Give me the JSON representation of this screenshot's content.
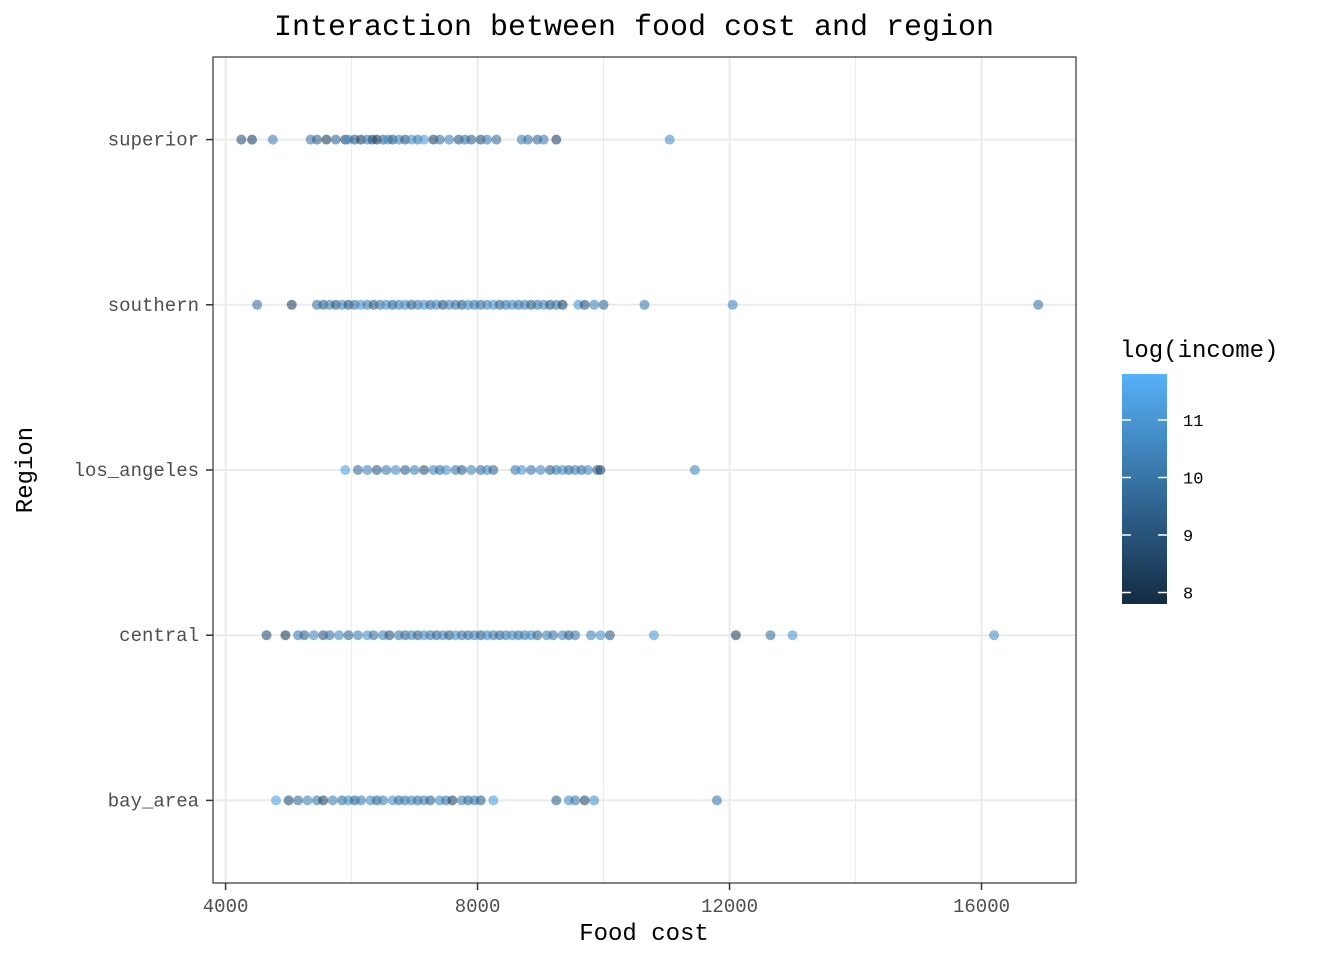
{
  "chart_data": {
    "type": "scatter",
    "title": "Interaction between food cost and region",
    "xlabel": "Food cost",
    "ylabel": "Region",
    "xlim": [
      3800,
      17500
    ],
    "xticks": [
      4000,
      8000,
      12000,
      16000
    ],
    "xtick_labels": [
      "4000",
      "8000",
      "12000",
      "16000"
    ],
    "categories": [
      "bay_area",
      "central",
      "los_angeles",
      "southern",
      "superior"
    ],
    "grid": true,
    "legend": {
      "title": "log(income)",
      "placement": "right",
      "range": [
        7.8,
        11.8
      ],
      "ticks": [
        8,
        9,
        10,
        11
      ],
      "tick_labels": [
        "8",
        "9",
        "10",
        "11"
      ],
      "color_low": "#132B43",
      "color_high": "#56B1F7"
    },
    "points": {
      "superior": [
        [
          4250,
          9.0
        ],
        [
          4420,
          8.6
        ],
        [
          4750,
          10.4
        ],
        [
          5350,
          10.2
        ],
        [
          5450,
          9.4
        ],
        [
          5600,
          8.5
        ],
        [
          5750,
          9.6
        ],
        [
          5900,
          8.7
        ],
        [
          5950,
          10.8
        ],
        [
          6050,
          9.2
        ],
        [
          6150,
          8.6
        ],
        [
          6250,
          10.3
        ],
        [
          6330,
          9.0
        ],
        [
          6400,
          8.4
        ],
        [
          6500,
          9.8
        ],
        [
          6580,
          10.6
        ],
        [
          6650,
          9.3
        ],
        [
          6750,
          10.5
        ],
        [
          6850,
          9.1
        ],
        [
          6950,
          10.9
        ],
        [
          7050,
          10.2
        ],
        [
          7150,
          11.2
        ],
        [
          7300,
          8.5
        ],
        [
          7400,
          9.9
        ],
        [
          7550,
          10.5
        ],
        [
          7700,
          9.2
        ],
        [
          7800,
          10.1
        ],
        [
          7900,
          9.5
        ],
        [
          8050,
          9.0
        ],
        [
          8150,
          10.3
        ],
        [
          8300,
          9.8
        ],
        [
          8700,
          10.4
        ],
        [
          8800,
          10.0
        ],
        [
          8950,
          9.7
        ],
        [
          9050,
          10.3
        ],
        [
          9250,
          8.6
        ],
        [
          11050,
          10.8
        ]
      ],
      "southern": [
        [
          4500,
          9.9
        ],
        [
          5050,
          8.6
        ],
        [
          5450,
          10.0
        ],
        [
          5550,
          9.5
        ],
        [
          5650,
          10.3
        ],
        [
          5750,
          9.1
        ],
        [
          5850,
          10.5
        ],
        [
          5950,
          9.0
        ],
        [
          6050,
          9.8
        ],
        [
          6150,
          10.9
        ],
        [
          6250,
          10.4
        ],
        [
          6350,
          9.2
        ],
        [
          6450,
          10.1
        ],
        [
          6550,
          10.7
        ],
        [
          6650,
          9.6
        ],
        [
          6750,
          10.3
        ],
        [
          6850,
          10.6
        ],
        [
          6950,
          9.4
        ],
        [
          7050,
          10.2
        ],
        [
          7150,
          10.8
        ],
        [
          7250,
          9.7
        ],
        [
          7350,
          10.4
        ],
        [
          7450,
          9.1
        ],
        [
          7550,
          10.5
        ],
        [
          7650,
          10.0
        ],
        [
          7750,
          9.3
        ],
        [
          7850,
          10.7
        ],
        [
          7950,
          10.1
        ],
        [
          8050,
          9.8
        ],
        [
          8150,
          10.4
        ],
        [
          8250,
          10.9
        ],
        [
          8350,
          9.5
        ],
        [
          8450,
          10.2
        ],
        [
          8550,
          10.6
        ],
        [
          8650,
          9.9
        ],
        [
          8750,
          10.3
        ],
        [
          8850,
          9.4
        ],
        [
          8950,
          10.0
        ],
        [
          9050,
          10.5
        ],
        [
          9150,
          9.2
        ],
        [
          9250,
          10.1
        ],
        [
          9350,
          8.6
        ],
        [
          9600,
          11.0
        ],
        [
          9700,
          9.0
        ],
        [
          9850,
          10.4
        ],
        [
          10000,
          9.7
        ],
        [
          10650,
          10.2
        ],
        [
          12050,
          10.6
        ],
        [
          16900,
          10.1
        ]
      ],
      "los_angeles": [
        [
          5900,
          11.3
        ],
        [
          6100,
          9.8
        ],
        [
          6250,
          10.5
        ],
        [
          6400,
          9.3
        ],
        [
          6550,
          10.2
        ],
        [
          6700,
          10.7
        ],
        [
          6850,
          9.5
        ],
        [
          7000,
          10.4
        ],
        [
          7150,
          9.1
        ],
        [
          7300,
          10.6
        ],
        [
          7400,
          9.8
        ],
        [
          7500,
          10.9
        ],
        [
          7650,
          10.2
        ],
        [
          7750,
          9.4
        ],
        [
          7900,
          10.5
        ],
        [
          8050,
          9.9
        ],
        [
          8150,
          10.7
        ],
        [
          8250,
          9.6
        ],
        [
          8600,
          10.1
        ],
        [
          8700,
          10.9
        ],
        [
          8850,
          10.0
        ],
        [
          9000,
          10.6
        ],
        [
          9150,
          9.5
        ],
        [
          9250,
          10.2
        ],
        [
          9350,
          10.8
        ],
        [
          9450,
          9.7
        ],
        [
          9550,
          10.3
        ],
        [
          9650,
          9.9
        ],
        [
          9750,
          10.6
        ],
        [
          9900,
          9.3
        ],
        [
          9950,
          8.7
        ],
        [
          11450,
          10.6
        ]
      ],
      "central": [
        [
          4650,
          8.9
        ],
        [
          4950,
          8.4
        ],
        [
          5150,
          10.3
        ],
        [
          5250,
          9.5
        ],
        [
          5400,
          10.6
        ],
        [
          5550,
          9.2
        ],
        [
          5650,
          10.0
        ],
        [
          5800,
          10.7
        ],
        [
          5950,
          9.6
        ],
        [
          6100,
          10.4
        ],
        [
          6250,
          10.9
        ],
        [
          6350,
          9.9
        ],
        [
          6500,
          10.5
        ],
        [
          6600,
          9.1
        ],
        [
          6750,
          10.2
        ],
        [
          6850,
          9.7
        ],
        [
          6950,
          10.6
        ],
        [
          7050,
          9.4
        ],
        [
          7150,
          10.8
        ],
        [
          7250,
          10.1
        ],
        [
          7350,
          9.6
        ],
        [
          7450,
          10.5
        ],
        [
          7550,
          9.2
        ],
        [
          7650,
          10.9
        ],
        [
          7750,
          10.0
        ],
        [
          7850,
          9.8
        ],
        [
          7950,
          10.4
        ],
        [
          8050,
          9.5
        ],
        [
          8150,
          10.7
        ],
        [
          8250,
          10.1
        ],
        [
          8350,
          9.7
        ],
        [
          8450,
          10.3
        ],
        [
          8550,
          10.6
        ],
        [
          8650,
          9.9
        ],
        [
          8750,
          10.2
        ],
        [
          8850,
          10.8
        ],
        [
          8950,
          9.6
        ],
        [
          9100,
          10.4
        ],
        [
          9200,
          10.0
        ],
        [
          9350,
          10.6
        ],
        [
          9450,
          9.4
        ],
        [
          9550,
          10.2
        ],
        [
          9800,
          10.5
        ],
        [
          9950,
          10.9
        ],
        [
          10100,
          9.3
        ],
        [
          10800,
          11.1
        ],
        [
          12100,
          8.6
        ],
        [
          12650,
          9.9
        ],
        [
          13000,
          11.0
        ],
        [
          16200,
          10.8
        ]
      ],
      "bay_area": [
        [
          4800,
          11.4
        ],
        [
          5000,
          8.9
        ],
        [
          5150,
          9.8
        ],
        [
          5300,
          10.5
        ],
        [
          5450,
          10.1
        ],
        [
          5550,
          8.6
        ],
        [
          5700,
          10.4
        ],
        [
          5850,
          9.9
        ],
        [
          5950,
          10.8
        ],
        [
          6050,
          9.5
        ],
        [
          6150,
          10.3
        ],
        [
          6300,
          10.7
        ],
        [
          6400,
          9.6
        ],
        [
          6500,
          10.4
        ],
        [
          6650,
          10.9
        ],
        [
          6750,
          9.8
        ],
        [
          6850,
          10.2
        ],
        [
          6950,
          10.6
        ],
        [
          7050,
          9.9
        ],
        [
          7150,
          10.3
        ],
        [
          7250,
          9.5
        ],
        [
          7400,
          10.7
        ],
        [
          7500,
          10.1
        ],
        [
          7600,
          8.7
        ],
        [
          7750,
          10.4
        ],
        [
          7850,
          9.7
        ],
        [
          7950,
          10.2
        ],
        [
          8050,
          9.4
        ],
        [
          8250,
          11.2
        ],
        [
          9250,
          9.6
        ],
        [
          9450,
          10.7
        ],
        [
          9550,
          10.2
        ],
        [
          9700,
          8.8
        ],
        [
          9850,
          10.9
        ],
        [
          11800,
          10.2
        ]
      ]
    }
  }
}
